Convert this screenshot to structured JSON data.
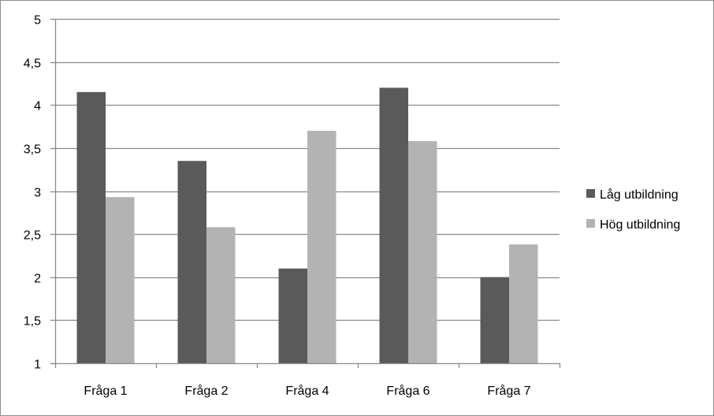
{
  "chart_data": {
    "type": "bar",
    "categories": [
      "Fråga 1",
      "Fråga 2",
      "Fråga 4",
      "Fråga 6",
      "Fråga 7"
    ],
    "series": [
      {
        "name": "Låg utbildning",
        "color": "#5a5a5a",
        "values": [
          4.15,
          3.35,
          2.1,
          4.2,
          2.0
        ]
      },
      {
        "name": "Hög utbildning",
        "color": "#b3b3b3",
        "values": [
          2.93,
          2.58,
          3.7,
          3.58,
          2.38
        ]
      }
    ],
    "yticks": [
      "1",
      "1,5",
      "2",
      "2,5",
      "3",
      "3,5",
      "4",
      "4,5",
      "5"
    ],
    "ylim": [
      1,
      5
    ],
    "grid": true,
    "legend_position": "right"
  }
}
